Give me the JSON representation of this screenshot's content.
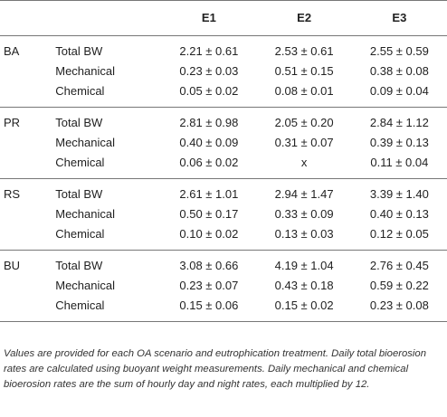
{
  "table": {
    "headers": [
      "",
      "",
      "E1",
      "E2",
      "E3"
    ],
    "groups": [
      {
        "name": "BA",
        "rows": [
          {
            "metric": "Total BW",
            "e1": "2.21 ± 0.61",
            "e2": "2.53 ± 0.61",
            "e3": "2.55 ± 0.59"
          },
          {
            "metric": "Mechanical",
            "e1": "0.23 ± 0.03",
            "e2": "0.51 ± 0.15",
            "e3": "0.38 ± 0.08"
          },
          {
            "metric": "Chemical",
            "e1": "0.05 ± 0.02",
            "e2": "0.08 ± 0.01",
            "e3": "0.09 ± 0.04"
          }
        ]
      },
      {
        "name": "PR",
        "rows": [
          {
            "metric": "Total BW",
            "e1": "2.81 ± 0.98",
            "e2": "2.05 ± 0.20",
            "e3": "2.84 ± 1.12"
          },
          {
            "metric": "Mechanical",
            "e1": "0.40 ± 0.09",
            "e2": "0.31 ± 0.07",
            "e3": "0.39 ± 0.13"
          },
          {
            "metric": "Chemical",
            "e1": "0.06 ± 0.02",
            "e2": "x",
            "e3": "0.11 ± 0.04"
          }
        ]
      },
      {
        "name": "RS",
        "rows": [
          {
            "metric": "Total BW",
            "e1": "2.61 ± 1.01",
            "e2": "2.94 ± 1.47",
            "e3": "3.39 ± 1.40"
          },
          {
            "metric": "Mechanical",
            "e1": "0.50 ± 0.17",
            "e2": "0.33 ± 0.09",
            "e3": "0.40 ± 0.13"
          },
          {
            "metric": "Chemical",
            "e1": "0.10 ± 0.02",
            "e2": "0.13 ± 0.03",
            "e3": "0.12 ± 0.05"
          }
        ]
      },
      {
        "name": "BU",
        "rows": [
          {
            "metric": "Total BW",
            "e1": "3.08 ± 0.66",
            "e2": "4.19 ± 1.04",
            "e3": "2.76 ± 0.45"
          },
          {
            "metric": "Mechanical",
            "e1": "0.23 ± 0.07",
            "e2": "0.43 ± 0.18",
            "e3": "0.59 ± 0.22"
          },
          {
            "metric": "Chemical",
            "e1": "0.15 ± 0.06",
            "e2": "0.15 ± 0.02",
            "e3": "0.23 ± 0.08"
          }
        ]
      }
    ]
  },
  "footnote": "Values are provided for each OA scenario and eutrophication treatment. Daily total bioerosion rates are calculated using buoyant weight measurements. Daily mechanical and chemical bioerosion rates are the sum of hourly day and night rates, each multiplied by 12."
}
